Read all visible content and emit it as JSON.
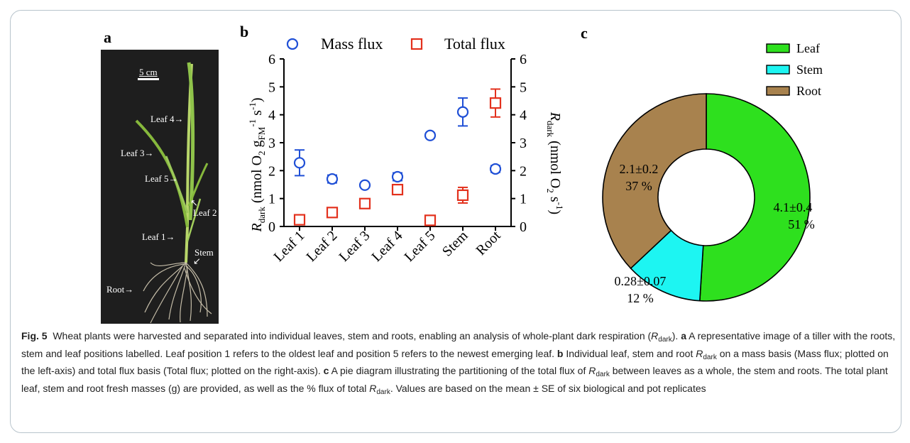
{
  "panel_a": {
    "letter": "a",
    "scale_label": "5 cm",
    "labels": {
      "leaf4": "Leaf 4→",
      "leaf3": "Leaf 3→",
      "leaf5": "Leaf 5→",
      "leaf2_arrow": "↖",
      "leaf2": "Leaf 2",
      "leaf1": "Leaf 1→",
      "stem": "Stem",
      "stem_arrow": "↙",
      "root": "Root→"
    }
  },
  "chart_data": [
    {
      "panel": "b",
      "type": "scatter",
      "categories": [
        "Leaf 1",
        "Leaf 2",
        "Leaf 3",
        "Leaf 4",
        "Leaf 5",
        "Stem",
        "Root"
      ],
      "series": [
        {
          "name": "Mass flux",
          "marker": "circle",
          "color": "#1f4fd6",
          "axis": "left",
          "values": [
            2.28,
            1.7,
            1.48,
            1.78,
            3.26,
            4.1,
            2.06
          ],
          "errors": [
            0.46,
            0.14,
            0.0,
            0.14,
            0.09,
            0.5,
            0.12
          ]
        },
        {
          "name": "Total flux",
          "marker": "square",
          "color": "#e3311d",
          "axis": "right",
          "values": [
            0.24,
            0.5,
            0.82,
            1.32,
            0.22,
            1.12,
            4.42
          ],
          "errors": [
            0.0,
            0.0,
            0.1,
            0.14,
            0.0,
            0.28,
            0.5
          ]
        }
      ],
      "ylim": [
        0,
        6
      ],
      "yticks": [
        "0",
        "1",
        "2",
        "3",
        "4",
        "5",
        "6"
      ],
      "legend_position": "top"
    },
    {
      "panel": "c",
      "type": "pie",
      "donut": true,
      "slices": [
        {
          "name": "Leaf",
          "percent": 51,
          "value_label": "4.1±0.4",
          "percent_label": "51 %",
          "color": "#2ee01e"
        },
        {
          "name": "Stem",
          "percent": 12,
          "value_label": "0.28±0.07",
          "percent_label": "12 %",
          "color": "#1df5f2"
        },
        {
          "name": "Root",
          "percent": 37,
          "value_label": "2.1±0.2",
          "percent_label": "37 %",
          "color": "#a8824e"
        }
      ],
      "legend_position": "top-right"
    }
  ],
  "panel_b": {
    "letter": "b",
    "ylabel_left": {
      "main": "R",
      "sub": "dark",
      "rest": " (nmol O",
      "sub2": "2",
      "rest2": " g",
      "sub3": "FM",
      "sup1": "-1",
      "rest3": " s",
      "sup2": "-1",
      "close": ")"
    },
    "ylabel_right": {
      "main": "R",
      "sub": "dark",
      "rest": " (nmol O",
      "sub2": "2",
      "rest2": " s",
      "sup": "-1",
      "close": ")"
    }
  },
  "panel_c": {
    "letter": "c"
  },
  "caption": {
    "fig_label": "Fig. 5",
    "s1": "Wheat plants were harvested and separated into individual leaves, stem and roots, enabling an analysis of whole-plant dark respiration (",
    "r": "R",
    "dark": "dark",
    "s2": "). ",
    "a": "a",
    "s3": " A representative image of a tiller with the roots, stem and leaf positions labelled. Leaf position 1 refers to the oldest leaf and position 5 refers to the newest emerging leaf. ",
    "b": "b",
    "s4": " Individual leaf, stem and root ",
    "s5": " on a mass basis (Mass flux; plotted on the left-axis) and total flux basis (Total flux; plotted on the right-axis). ",
    "c": "c",
    "s6": " A pie diagram illustrating the partitioning of the total flux of ",
    "s7": " between leaves as a whole, the stem and roots. The total plant leaf, stem and root fresh masses (g) are provided, as well as the % flux of total ",
    "s8": ". Values are based on the mean ± SE of six biological and pot replicates"
  }
}
